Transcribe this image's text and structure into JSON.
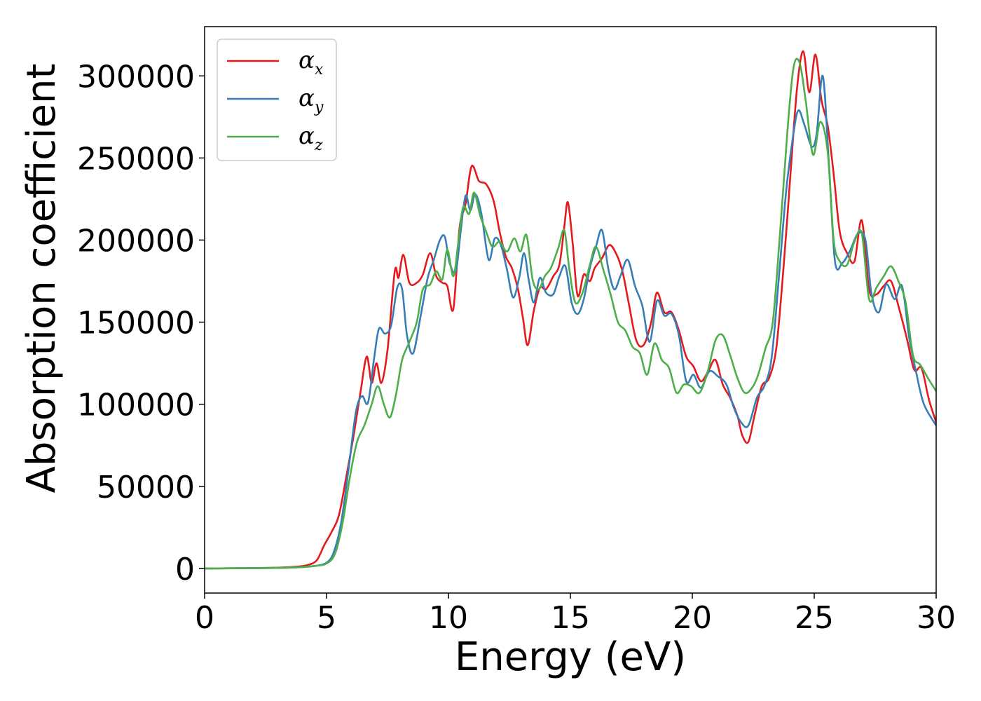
{
  "chart_data": {
    "type": "line",
    "title": "",
    "xlabel": "Energy (eV)",
    "ylabel": "Absorption coefficient",
    "xlim": [
      0,
      30
    ],
    "ylim": [
      -15000,
      330000
    ],
    "xticks": [
      0,
      5,
      10,
      15,
      20,
      25,
      30
    ],
    "yticks": [
      0,
      50000,
      100000,
      150000,
      200000,
      250000,
      300000
    ],
    "xtick_labels": [
      "0",
      "5",
      "10",
      "15",
      "20",
      "25",
      "30"
    ],
    "ytick_labels": [
      "0",
      "50000",
      "100000",
      "150000",
      "200000",
      "250000",
      "300000"
    ],
    "grid": false,
    "legend_position": "top-left",
    "series": [
      {
        "name": "αx",
        "symbol": "α",
        "subscript": "x",
        "color": "#e41a1c",
        "points": [
          [
            0,
            0
          ],
          [
            2,
            200
          ],
          [
            3.5,
            800
          ],
          [
            4.2,
            2000
          ],
          [
            4.6,
            5000
          ],
          [
            4.9,
            14000
          ],
          [
            5.2,
            22000
          ],
          [
            5.5,
            32000
          ],
          [
            5.8,
            55000
          ],
          [
            6.1,
            80000
          ],
          [
            6.4,
            108000
          ],
          [
            6.65,
            129000
          ],
          [
            6.85,
            113000
          ],
          [
            7.05,
            125000
          ],
          [
            7.25,
            113000
          ],
          [
            7.5,
            133000
          ],
          [
            7.8,
            181000
          ],
          [
            7.95,
            177000
          ],
          [
            8.15,
            191000
          ],
          [
            8.4,
            174000
          ],
          [
            8.7,
            174000
          ],
          [
            8.95,
            179000
          ],
          [
            9.25,
            192000
          ],
          [
            9.5,
            178000
          ],
          [
            9.75,
            174000
          ],
          [
            9.95,
            172000
          ],
          [
            10.2,
            158000
          ],
          [
            10.45,
            207000
          ],
          [
            10.7,
            222000
          ],
          [
            10.95,
            245000
          ],
          [
            11.25,
            236000
          ],
          [
            11.55,
            234000
          ],
          [
            11.85,
            224000
          ],
          [
            12.1,
            205000
          ],
          [
            12.35,
            190000
          ],
          [
            12.6,
            183000
          ],
          [
            12.85,
            170000
          ],
          [
            13.05,
            153000
          ],
          [
            13.25,
            136000
          ],
          [
            13.5,
            157000
          ],
          [
            13.75,
            171000
          ],
          [
            14.0,
            170000
          ],
          [
            14.3,
            178000
          ],
          [
            14.55,
            185000
          ],
          [
            14.75,
            208000
          ],
          [
            14.9,
            223000
          ],
          [
            15.1,
            197000
          ],
          [
            15.3,
            166000
          ],
          [
            15.55,
            179000
          ],
          [
            15.8,
            175000
          ],
          [
            16.0,
            183000
          ],
          [
            16.3,
            189000
          ],
          [
            16.6,
            197000
          ],
          [
            16.9,
            191000
          ],
          [
            17.15,
            180000
          ],
          [
            17.4,
            161000
          ],
          [
            17.7,
            139000
          ],
          [
            18.0,
            136000
          ],
          [
            18.3,
            149000
          ],
          [
            18.55,
            168000
          ],
          [
            18.85,
            156000
          ],
          [
            19.15,
            156000
          ],
          [
            19.45,
            145000
          ],
          [
            19.75,
            129000
          ],
          [
            20.05,
            123000
          ],
          [
            20.35,
            114000
          ],
          [
            20.65,
            120000
          ],
          [
            20.95,
            127000
          ],
          [
            21.25,
            112000
          ],
          [
            21.55,
            104000
          ],
          [
            21.85,
            93000
          ],
          [
            22.05,
            81000
          ],
          [
            22.3,
            77000
          ],
          [
            22.55,
            93000
          ],
          [
            22.85,
            111000
          ],
          [
            23.15,
            116000
          ],
          [
            23.45,
            135000
          ],
          [
            23.75,
            185000
          ],
          [
            24.05,
            245000
          ],
          [
            24.3,
            293000
          ],
          [
            24.55,
            315000
          ],
          [
            24.8,
            290000
          ],
          [
            25.05,
            313000
          ],
          [
            25.3,
            285000
          ],
          [
            25.55,
            270000
          ],
          [
            25.8,
            240000
          ],
          [
            26.05,
            205000
          ],
          [
            26.35,
            192000
          ],
          [
            26.65,
            187000
          ],
          [
            26.95,
            212000
          ],
          [
            27.25,
            170000
          ],
          [
            27.55,
            167000
          ],
          [
            27.85,
            172000
          ],
          [
            28.15,
            175000
          ],
          [
            28.45,
            160000
          ],
          [
            28.8,
            140000
          ],
          [
            29.1,
            121000
          ],
          [
            29.4,
            122000
          ],
          [
            29.7,
            103000
          ],
          [
            30,
            89000
          ]
        ]
      },
      {
        "name": "αy",
        "symbol": "α",
        "subscript": "y",
        "color": "#377eb8",
        "points": [
          [
            0,
            0
          ],
          [
            2,
            150
          ],
          [
            3.5,
            500
          ],
          [
            4.5,
            1500
          ],
          [
            5.0,
            3500
          ],
          [
            5.3,
            10000
          ],
          [
            5.6,
            28000
          ],
          [
            5.9,
            60000
          ],
          [
            6.2,
            95000
          ],
          [
            6.45,
            105000
          ],
          [
            6.7,
            101000
          ],
          [
            6.95,
            128000
          ],
          [
            7.15,
            146000
          ],
          [
            7.4,
            143000
          ],
          [
            7.65,
            148000
          ],
          [
            7.9,
            171000
          ],
          [
            8.1,
            170000
          ],
          [
            8.3,
            142000
          ],
          [
            8.55,
            131000
          ],
          [
            8.85,
            153000
          ],
          [
            9.15,
            177000
          ],
          [
            9.4,
            188000
          ],
          [
            9.65,
            200000
          ],
          [
            9.85,
            202000
          ],
          [
            10.05,
            186000
          ],
          [
            10.3,
            181000
          ],
          [
            10.5,
            205000
          ],
          [
            10.7,
            227000
          ],
          [
            10.9,
            218000
          ],
          [
            11.1,
            228000
          ],
          [
            11.35,
            216000
          ],
          [
            11.65,
            188000
          ],
          [
            11.9,
            201000
          ],
          [
            12.15,
            197000
          ],
          [
            12.4,
            182000
          ],
          [
            12.65,
            165000
          ],
          [
            12.9,
            177000
          ],
          [
            13.1,
            192000
          ],
          [
            13.3,
            175000
          ],
          [
            13.5,
            162000
          ],
          [
            13.75,
            177000
          ],
          [
            14.0,
            168000
          ],
          [
            14.3,
            167000
          ],
          [
            14.55,
            178000
          ],
          [
            14.8,
            184000
          ],
          [
            15.05,
            162000
          ],
          [
            15.3,
            155000
          ],
          [
            15.55,
            164000
          ],
          [
            15.8,
            183000
          ],
          [
            16.05,
            196000
          ],
          [
            16.3,
            206000
          ],
          [
            16.55,
            183000
          ],
          [
            16.8,
            170000
          ],
          [
            17.05,
            178000
          ],
          [
            17.35,
            188000
          ],
          [
            17.65,
            172000
          ],
          [
            17.95,
            160000
          ],
          [
            18.25,
            138000
          ],
          [
            18.55,
            163000
          ],
          [
            18.85,
            154000
          ],
          [
            19.15,
            155000
          ],
          [
            19.45,
            142000
          ],
          [
            19.75,
            114000
          ],
          [
            20.05,
            118000
          ],
          [
            20.35,
            110000
          ],
          [
            20.7,
            120000
          ],
          [
            21.05,
            117000
          ],
          [
            21.4,
            112000
          ],
          [
            21.7,
            98000
          ],
          [
            22.0,
            89000
          ],
          [
            22.3,
            87000
          ],
          [
            22.65,
            104000
          ],
          [
            22.95,
            111000
          ],
          [
            23.25,
            128000
          ],
          [
            23.55,
            177000
          ],
          [
            23.85,
            230000
          ],
          [
            24.15,
            265000
          ],
          [
            24.35,
            279000
          ],
          [
            24.6,
            270000
          ],
          [
            24.9,
            257000
          ],
          [
            25.1,
            265000
          ],
          [
            25.35,
            300000
          ],
          [
            25.6,
            247000
          ],
          [
            25.85,
            187000
          ],
          [
            26.15,
            186000
          ],
          [
            26.45,
            193000
          ],
          [
            26.8,
            204000
          ],
          [
            27.1,
            200000
          ],
          [
            27.35,
            167000
          ],
          [
            27.65,
            156000
          ],
          [
            27.95,
            173000
          ],
          [
            28.3,
            164000
          ],
          [
            28.6,
            172000
          ],
          [
            28.9,
            140000
          ],
          [
            29.2,
            118000
          ],
          [
            29.5,
            100000
          ],
          [
            30,
            87000
          ]
        ]
      },
      {
        "name": "αz",
        "symbol": "α",
        "subscript": "z",
        "color": "#4daf4a",
        "points": [
          [
            0,
            0
          ],
          [
            2,
            150
          ],
          [
            3.5,
            500
          ],
          [
            4.5,
            1500
          ],
          [
            5.0,
            3000
          ],
          [
            5.35,
            9000
          ],
          [
            5.65,
            27000
          ],
          [
            5.95,
            55000
          ],
          [
            6.25,
            77000
          ],
          [
            6.55,
            87000
          ],
          [
            6.85,
            100000
          ],
          [
            7.1,
            111000
          ],
          [
            7.35,
            100000
          ],
          [
            7.6,
            92000
          ],
          [
            7.85,
            106000
          ],
          [
            8.1,
            127000
          ],
          [
            8.4,
            138000
          ],
          [
            8.7,
            150000
          ],
          [
            8.95,
            170000
          ],
          [
            9.25,
            173000
          ],
          [
            9.5,
            181000
          ],
          [
            9.75,
            176000
          ],
          [
            9.95,
            194000
          ],
          [
            10.2,
            178000
          ],
          [
            10.4,
            198000
          ],
          [
            10.6,
            220000
          ],
          [
            10.85,
            216000
          ],
          [
            11.05,
            229000
          ],
          [
            11.3,
            215000
          ],
          [
            11.55,
            205000
          ],
          [
            11.8,
            196000
          ],
          [
            12.1,
            199000
          ],
          [
            12.4,
            193000
          ],
          [
            12.7,
            201000
          ],
          [
            12.95,
            193000
          ],
          [
            13.2,
            203000
          ],
          [
            13.45,
            176000
          ],
          [
            13.7,
            170000
          ],
          [
            13.95,
            178000
          ],
          [
            14.2,
            183000
          ],
          [
            14.5,
            195000
          ],
          [
            14.75,
            206000
          ],
          [
            14.95,
            183000
          ],
          [
            15.2,
            162000
          ],
          [
            15.5,
            168000
          ],
          [
            15.8,
            185000
          ],
          [
            16.05,
            196000
          ],
          [
            16.35,
            182000
          ],
          [
            16.65,
            167000
          ],
          [
            16.95,
            150000
          ],
          [
            17.25,
            145000
          ],
          [
            17.55,
            135000
          ],
          [
            17.85,
            131000
          ],
          [
            18.15,
            118000
          ],
          [
            18.45,
            137000
          ],
          [
            18.75,
            127000
          ],
          [
            19.05,
            122000
          ],
          [
            19.35,
            107000
          ],
          [
            19.65,
            112000
          ],
          [
            19.95,
            111000
          ],
          [
            20.3,
            107000
          ],
          [
            20.65,
            121000
          ],
          [
            20.95,
            139000
          ],
          [
            21.25,
            142000
          ],
          [
            21.55,
            130000
          ],
          [
            21.85,
            116000
          ],
          [
            22.15,
            107000
          ],
          [
            22.45,
            110000
          ],
          [
            22.7,
            118000
          ],
          [
            23.0,
            134000
          ],
          [
            23.3,
            150000
          ],
          [
            23.6,
            205000
          ],
          [
            23.9,
            266000
          ],
          [
            24.15,
            305000
          ],
          [
            24.4,
            308000
          ],
          [
            24.65,
            285000
          ],
          [
            24.95,
            252000
          ],
          [
            25.25,
            272000
          ],
          [
            25.55,
            254000
          ],
          [
            25.8,
            200000
          ],
          [
            26.05,
            187000
          ],
          [
            26.35,
            185000
          ],
          [
            26.65,
            199000
          ],
          [
            26.95,
            204000
          ],
          [
            27.25,
            164000
          ],
          [
            27.55,
            171000
          ],
          [
            27.85,
            178000
          ],
          [
            28.15,
            184000
          ],
          [
            28.45,
            175000
          ],
          [
            28.75,
            162000
          ],
          [
            29.05,
            130000
          ],
          [
            29.35,
            124000
          ],
          [
            29.7,
            115000
          ],
          [
            30,
            108000
          ]
        ]
      }
    ]
  }
}
